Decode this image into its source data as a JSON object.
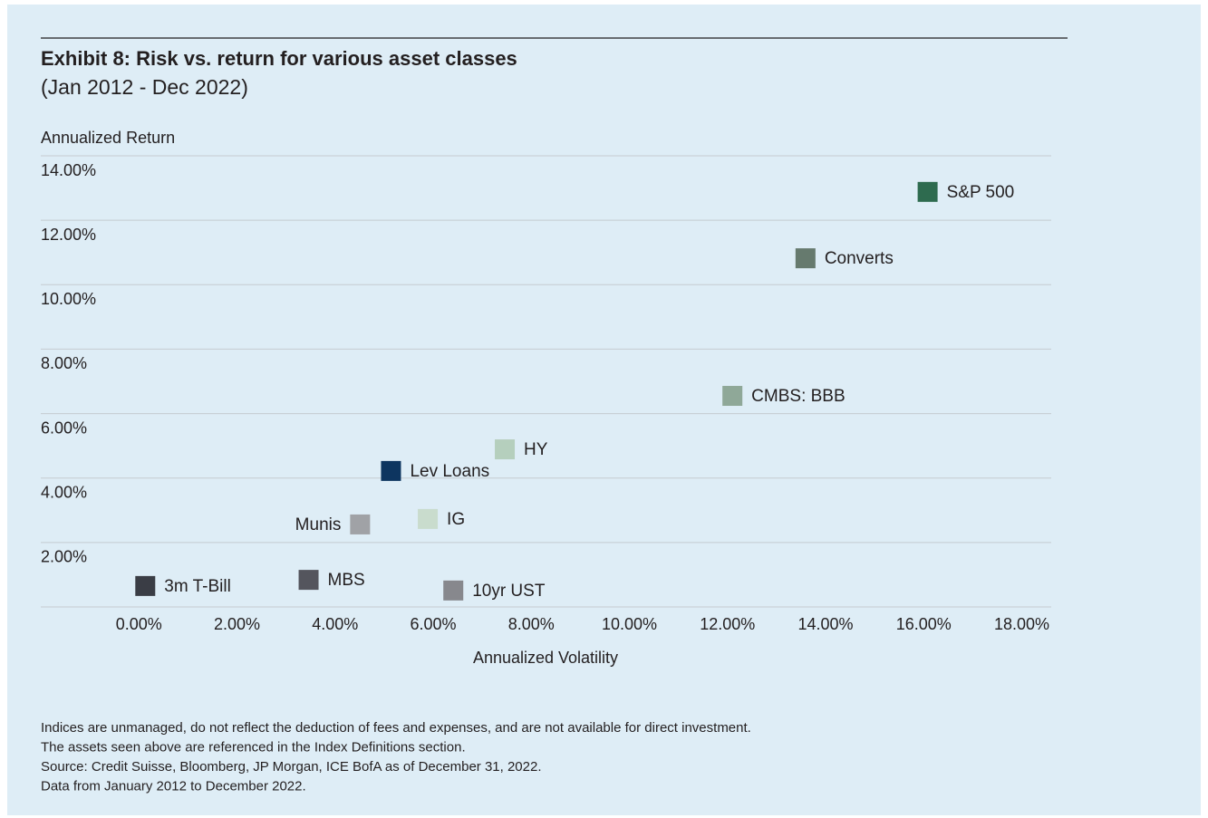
{
  "chart_data": {
    "type": "scatter",
    "title": "Exhibit 8: Risk vs. return for various asset classes",
    "subtitle": "(Jan 2012 - Dec 2022)",
    "y_label": "Annualized Return",
    "x_label": "Annualized Volatility",
    "xlim": [
      -2,
      18.6
    ],
    "ylim": [
      0,
      14
    ],
    "xticks": [
      {
        "value": 0,
        "label": "0.00%"
      },
      {
        "value": 2,
        "label": "2.00%"
      },
      {
        "value": 4,
        "label": "4.00%"
      },
      {
        "value": 6,
        "label": "6.00%"
      },
      {
        "value": 8,
        "label": "8.00%"
      },
      {
        "value": 10,
        "label": "10.00%"
      },
      {
        "value": 12,
        "label": "12.00%"
      },
      {
        "value": 14,
        "label": "14.00%"
      },
      {
        "value": 16,
        "label": "16.00%"
      },
      {
        "value": 18,
        "label": "18.00%"
      }
    ],
    "yticks": [
      {
        "value": 2,
        "label": "2.00%"
      },
      {
        "value": 4,
        "label": "4.00%"
      },
      {
        "value": 6,
        "label": "6.00%"
      },
      {
        "value": 8,
        "label": "8.00%"
      },
      {
        "value": 10,
        "label": "10.00%"
      },
      {
        "value": 12,
        "label": "12.00%"
      },
      {
        "value": 14,
        "label": "14.00%"
      }
    ],
    "grid": true,
    "series": [
      {
        "name": "S&P 500",
        "color": "#2e6b4f",
        "x": 16.08,
        "y": 12.88
      },
      {
        "name": "Converts",
        "color": "#667a6e",
        "x": 13.59,
        "y": 10.82
      },
      {
        "name": "CMBS: BBB",
        "color": "#8fa898",
        "x": 12.1,
        "y": 6.55
      },
      {
        "name": "HY",
        "color": "#b5cfbd",
        "x": 7.46,
        "y": 4.89
      },
      {
        "name": "Lev Loans",
        "color": "#0d3560",
        "x": 5.14,
        "y": 4.22
      },
      {
        "name": "IG",
        "color": "#c9dccd",
        "x": 5.89,
        "y": 2.73
      },
      {
        "name": "Munis",
        "color": "#a0a2a6",
        "x": 4.51,
        "y": 2.56,
        "label_position": "left"
      },
      {
        "name": "3m T-Bill",
        "color": "#3a3d45",
        "x": 0.13,
        "y": 0.65
      },
      {
        "name": "MBS",
        "color": "#54555d",
        "x": 3.46,
        "y": 0.84
      },
      {
        "name": "10yr UST",
        "color": "#87888d",
        "x": 6.41,
        "y": 0.51
      }
    ],
    "notes": [
      "Indices are unmanaged, do not reflect the deduction of fees and expenses, and are not available for direct investment.",
      "The assets seen above are referenced in the Index Definitions section.",
      "Source: Credit Suisse, Bloomberg, JP Morgan, ICE BofA as of December 31, 2022.",
      "Data from January 2012 to December 2022."
    ]
  }
}
